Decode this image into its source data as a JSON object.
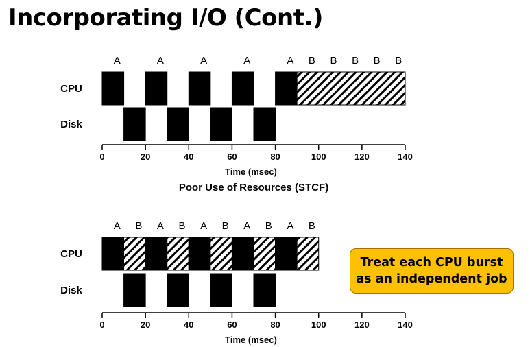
{
  "slide": {
    "title": "Incorporating I/O (Cont.)"
  },
  "legend_colors": {
    "job_a": "#000000",
    "job_b_hatch": "#000000",
    "callout_bg": "#ffc000"
  },
  "timelines": [
    {
      "caption": "Poor Use of Resources (STCF)",
      "xlabel": "Time (msec)",
      "ticks": [
        0,
        20,
        40,
        60,
        80,
        100,
        120,
        140
      ],
      "rows": [
        {
          "label": "CPU",
          "segments": [
            {
              "job": "A",
              "start": 0,
              "end": 10
            },
            {
              "job": "A",
              "start": 20,
              "end": 30
            },
            {
              "job": "A",
              "start": 40,
              "end": 50
            },
            {
              "job": "A",
              "start": 60,
              "end": 70
            },
            {
              "job": "A",
              "start": 80,
              "end": 90
            },
            {
              "job": "B",
              "start": 90,
              "end": 140
            }
          ],
          "labels": [
            {
              "text": "A",
              "at": 5
            },
            {
              "text": "A",
              "at": 25
            },
            {
              "text": "A",
              "at": 45
            },
            {
              "text": "A",
              "at": 65
            },
            {
              "text": "A",
              "at": 85
            },
            {
              "text": "B",
              "at": 95
            },
            {
              "text": "B",
              "at": 105
            },
            {
              "text": "B",
              "at": 115
            },
            {
              "text": "B",
              "at": 125
            },
            {
              "text": "B",
              "at": 135
            }
          ]
        },
        {
          "label": "Disk",
          "segments": [
            {
              "job": "A",
              "start": 10,
              "end": 20
            },
            {
              "job": "A",
              "start": 30,
              "end": 40
            },
            {
              "job": "A",
              "start": 50,
              "end": 60
            },
            {
              "job": "A",
              "start": 70,
              "end": 80
            }
          ],
          "labels": []
        }
      ]
    },
    {
      "caption": "",
      "xlabel": "Time (msec)",
      "ticks": [
        0,
        20,
        40,
        60,
        80,
        100,
        120,
        140
      ],
      "rows": [
        {
          "label": "CPU",
          "segments": [
            {
              "job": "A",
              "start": 0,
              "end": 10
            },
            {
              "job": "B",
              "start": 10,
              "end": 20
            },
            {
              "job": "A",
              "start": 20,
              "end": 30
            },
            {
              "job": "B",
              "start": 30,
              "end": 40
            },
            {
              "job": "A",
              "start": 40,
              "end": 50
            },
            {
              "job": "B",
              "start": 50,
              "end": 60
            },
            {
              "job": "A",
              "start": 60,
              "end": 70
            },
            {
              "job": "B",
              "start": 70,
              "end": 80
            },
            {
              "job": "A",
              "start": 80,
              "end": 90
            },
            {
              "job": "B",
              "start": 90,
              "end": 100
            }
          ],
          "labels": [
            {
              "text": "A",
              "at": 5
            },
            {
              "text": "B",
              "at": 15
            },
            {
              "text": "A",
              "at": 25
            },
            {
              "text": "B",
              "at": 35
            },
            {
              "text": "A",
              "at": 45
            },
            {
              "text": "B",
              "at": 55
            },
            {
              "text": "A",
              "at": 65
            },
            {
              "text": "B",
              "at": 75
            },
            {
              "text": "A",
              "at": 85
            },
            {
              "text": "B",
              "at": 95
            }
          ]
        },
        {
          "label": "Disk",
          "segments": [
            {
              "job": "A",
              "start": 10,
              "end": 20
            },
            {
              "job": "A",
              "start": 30,
              "end": 40
            },
            {
              "job": "A",
              "start": 50,
              "end": 60
            },
            {
              "job": "A",
              "start": 70,
              "end": 80
            }
          ],
          "labels": []
        }
      ]
    }
  ],
  "callout": {
    "line1": "Treat each CPU burst",
    "line2": "as an independent job"
  }
}
